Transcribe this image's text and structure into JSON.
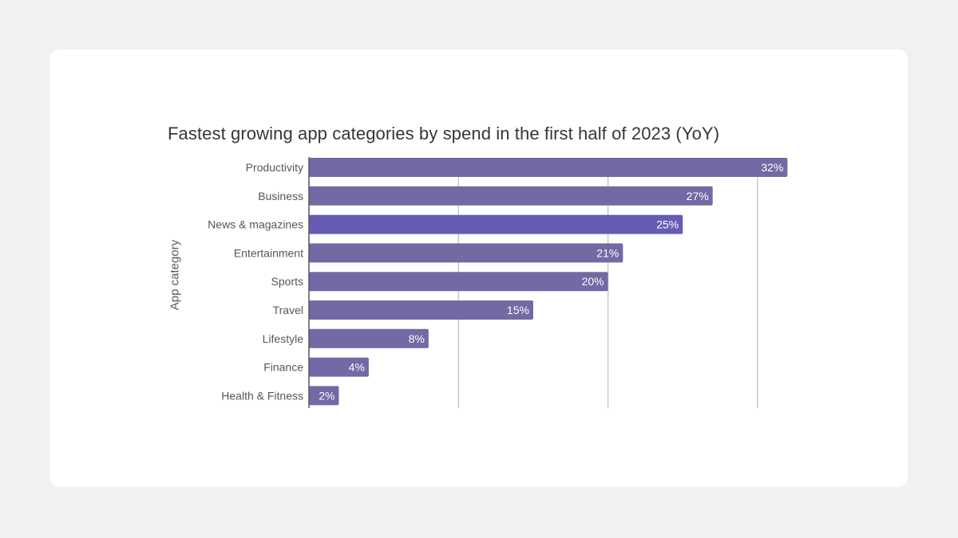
{
  "chart_data": {
    "type": "bar",
    "orientation": "horizontal",
    "title": "Fastest growing app categories by spend in the first half of 2023 (YoY)",
    "xlabel": "",
    "ylabel": "App category",
    "categories": [
      "Productivity",
      "Business",
      "News & magazines",
      "Entertainment",
      "Sports",
      "Travel",
      "Lifestyle",
      "Finance",
      "Health & Fitness"
    ],
    "values": [
      32,
      27,
      25,
      21,
      20,
      15,
      8,
      4,
      2
    ],
    "value_labels": [
      "32%",
      "27%",
      "25%",
      "21%",
      "20%",
      "15%",
      "8%",
      "4%",
      "2%"
    ],
    "unit": "%",
    "xlim": [
      0,
      32
    ],
    "gridlines_at": [
      10,
      20,
      30
    ],
    "grid": true,
    "x_tick_labels_shown": false,
    "legend": "none",
    "highlighted_category": "News & magazines"
  },
  "colors": {
    "bar": "#7369a4",
    "bar_highlight": "#665cb2",
    "gridline": "#c8c8c8",
    "axis": "#555555",
    "background": "#f1f1f1",
    "card": "#ffffff"
  }
}
